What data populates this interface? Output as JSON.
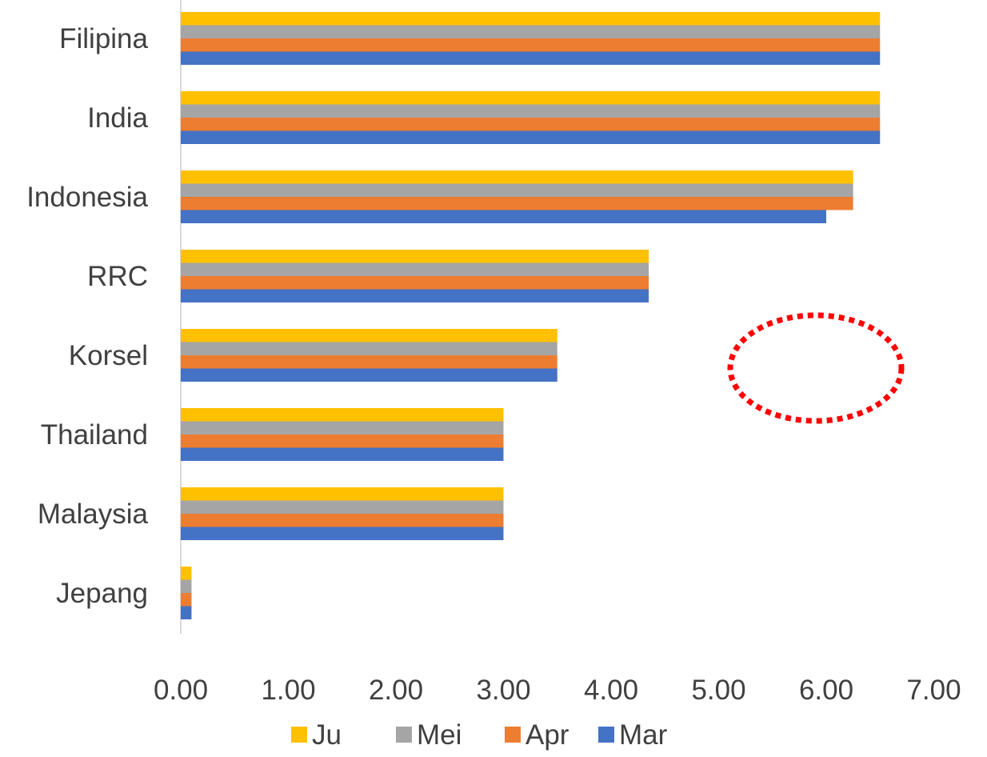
{
  "chart_data": {
    "type": "bar",
    "orientation": "horizontal",
    "categories": [
      "Filipina",
      "India",
      "Indonesia",
      "RRC",
      "Korsel",
      "Thailand",
      "Malaysia",
      "Jepang"
    ],
    "series": [
      {
        "name": "Ju",
        "color": "#FFC000",
        "values": [
          6.5,
          6.5,
          6.25,
          4.35,
          3.5,
          3.0,
          3.0,
          0.1
        ]
      },
      {
        "name": "Mei",
        "color": "#A5A5A5",
        "values": [
          6.5,
          6.5,
          6.25,
          4.35,
          3.5,
          3.0,
          3.0,
          0.1
        ]
      },
      {
        "name": "Apr",
        "color": "#ED7D31",
        "values": [
          6.5,
          6.5,
          6.25,
          4.35,
          3.5,
          3.0,
          3.0,
          0.1
        ]
      },
      {
        "name": "Mar",
        "color": "#4472C4",
        "values": [
          6.5,
          6.5,
          6.0,
          4.35,
          3.5,
          3.0,
          3.0,
          0.1
        ]
      }
    ],
    "xlim": [
      0,
      7
    ],
    "x_ticks": [
      "0.00",
      "1.00",
      "2.00",
      "3.00",
      "4.00",
      "5.00",
      "6.00",
      "7.00"
    ],
    "grid": false,
    "legend_position": "bottom",
    "annotation": {
      "shape": "dotted-ellipse",
      "color": "#FF0000",
      "highlights": "Indonesia"
    }
  }
}
